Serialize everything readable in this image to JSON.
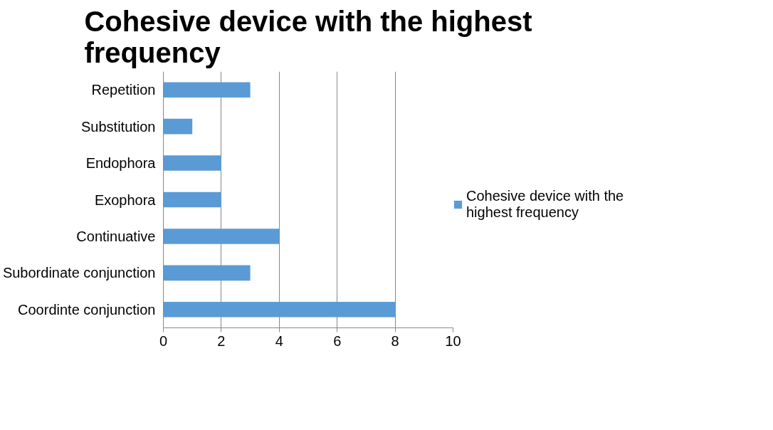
{
  "chart_data": {
    "type": "bar",
    "orientation": "horizontal",
    "title": "Cohesive device with the highest frequency",
    "categories": [
      "Repetition",
      "Substitution",
      "Endophora",
      "Exophora",
      "Continuative",
      "Subordinate conjunction",
      "Coordinte conjunction"
    ],
    "series": [
      {
        "name": "Cohesive device with the highest frequency",
        "color": "#5b9bd5",
        "values": [
          3,
          1,
          2,
          2,
          4,
          3,
          8
        ]
      }
    ],
    "xlim": [
      0,
      10
    ],
    "xticks": [
      0,
      2,
      4,
      6,
      8,
      10
    ],
    "grid": "x",
    "legend": "right"
  }
}
